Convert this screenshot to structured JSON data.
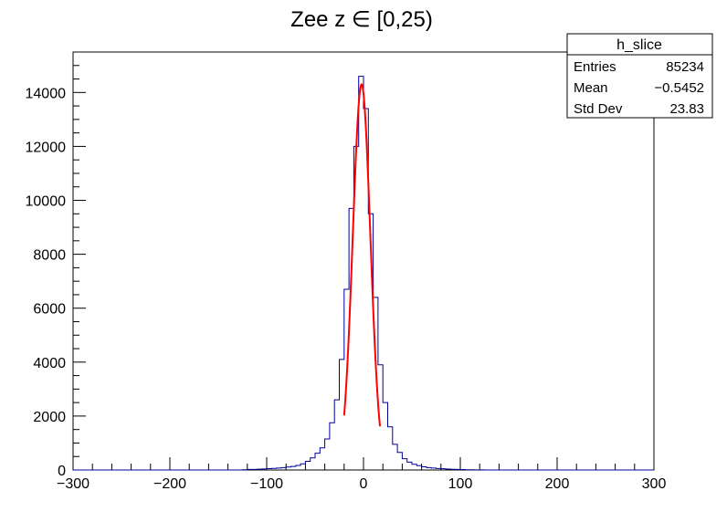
{
  "chart_data": {
    "type": "bar",
    "title": "Zee z ∈ [0,25)",
    "xlabel": "",
    "ylabel": "",
    "xlim": [
      -300,
      300
    ],
    "ylim": [
      0,
      15500
    ],
    "x_ticks": [
      -300,
      -200,
      -100,
      0,
      100,
      200,
      300
    ],
    "y_ticks": [
      0,
      2000,
      4000,
      6000,
      8000,
      10000,
      12000,
      14000
    ],
    "grid": false,
    "histogram": {
      "name": "h_slice",
      "bin_width": 5,
      "line_color": "#000099",
      "bins": [
        {
          "x": -125,
          "y": 10
        },
        {
          "x": -120,
          "y": 20
        },
        {
          "x": -115,
          "y": 20
        },
        {
          "x": -110,
          "y": 30
        },
        {
          "x": -105,
          "y": 40
        },
        {
          "x": -100,
          "y": 50
        },
        {
          "x": -95,
          "y": 60
        },
        {
          "x": -90,
          "y": 70
        },
        {
          "x": -85,
          "y": 90
        },
        {
          "x": -80,
          "y": 110
        },
        {
          "x": -75,
          "y": 130
        },
        {
          "x": -70,
          "y": 170
        },
        {
          "x": -65,
          "y": 230
        },
        {
          "x": -60,
          "y": 320
        },
        {
          "x": -55,
          "y": 450
        },
        {
          "x": -50,
          "y": 620
        },
        {
          "x": -45,
          "y": 820
        },
        {
          "x": -40,
          "y": 1150
        },
        {
          "x": -35,
          "y": 1750
        },
        {
          "x": -30,
          "y": 2600
        },
        {
          "x": -25,
          "y": 4100
        },
        {
          "x": -20,
          "y": 6700
        },
        {
          "x": -15,
          "y": 9700
        },
        {
          "x": -10,
          "y": 12000
        },
        {
          "x": -5,
          "y": 14600
        },
        {
          "x": 0,
          "y": 13400
        },
        {
          "x": 5,
          "y": 9500
        },
        {
          "x": 10,
          "y": 6400
        },
        {
          "x": 15,
          "y": 3900
        },
        {
          "x": 20,
          "y": 2500
        },
        {
          "x": 25,
          "y": 1600
        },
        {
          "x": 30,
          "y": 950
        },
        {
          "x": 35,
          "y": 650
        },
        {
          "x": 40,
          "y": 420
        },
        {
          "x": 45,
          "y": 290
        },
        {
          "x": 50,
          "y": 210
        },
        {
          "x": 55,
          "y": 160
        },
        {
          "x": 60,
          "y": 120
        },
        {
          "x": 65,
          "y": 90
        },
        {
          "x": 70,
          "y": 70
        },
        {
          "x": 75,
          "y": 55
        },
        {
          "x": 80,
          "y": 45
        },
        {
          "x": 85,
          "y": 35
        },
        {
          "x": 90,
          "y": 25
        },
        {
          "x": 95,
          "y": 20
        },
        {
          "x": 100,
          "y": 15
        },
        {
          "x": 105,
          "y": 10
        },
        {
          "x": 110,
          "y": 8
        },
        {
          "x": 115,
          "y": 5
        },
        {
          "x": 120,
          "y": 3
        }
      ]
    },
    "fit": {
      "function": "gaus",
      "color": "#ff0000",
      "amplitude": 14300,
      "mean": -2,
      "sigma": 9.1,
      "x_range": [
        -20,
        17
      ]
    },
    "legend": {
      "placement": "top-right",
      "title": "h_slice",
      "rows": [
        {
          "label": "Entries",
          "value": "85234"
        },
        {
          "label": "Mean",
          "value": "−0.5452"
        },
        {
          "label": "Std Dev",
          "value": "23.83"
        }
      ]
    }
  }
}
